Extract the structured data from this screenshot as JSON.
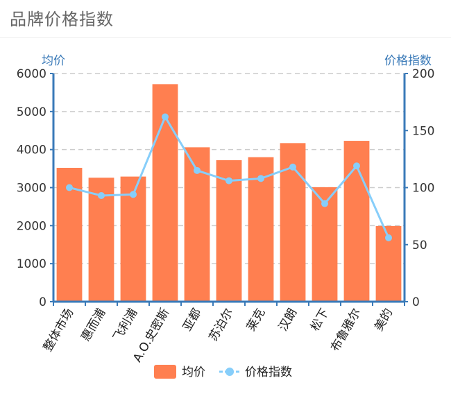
{
  "title": "品牌价格指数",
  "chart_data": {
    "type": "bar+line",
    "categories": [
      "整体市场",
      "惠而浦",
      "飞利浦",
      "A.O.史密斯",
      "亚都",
      "苏泊尔",
      "莱克",
      "汉朗",
      "松下",
      "布鲁雅尔",
      "美的"
    ],
    "series": [
      {
        "name": "均价",
        "type": "bar",
        "axis": "left",
        "color": "#ff7f50",
        "values": [
          3520,
          3260,
          3290,
          5720,
          4060,
          3720,
          3800,
          4170,
          3010,
          4230,
          1990
        ]
      },
      {
        "name": "价格指数",
        "type": "line",
        "axis": "right",
        "color": "#87cefa",
        "values": [
          100,
          93,
          94,
          162,
          115,
          106,
          108,
          118,
          86,
          119,
          56
        ]
      }
    ],
    "y_left": {
      "label": "均价",
      "min": 0,
      "max": 6000,
      "ticks": [
        0,
        1000,
        2000,
        3000,
        4000,
        5000,
        6000
      ]
    },
    "y_right": {
      "label": "价格指数",
      "min": 0,
      "max": 200,
      "ticks": [
        0,
        50,
        100,
        150,
        200
      ]
    },
    "legend": {
      "position": "bottom-center",
      "items": [
        "均价",
        "价格指数"
      ]
    },
    "grid": true
  }
}
